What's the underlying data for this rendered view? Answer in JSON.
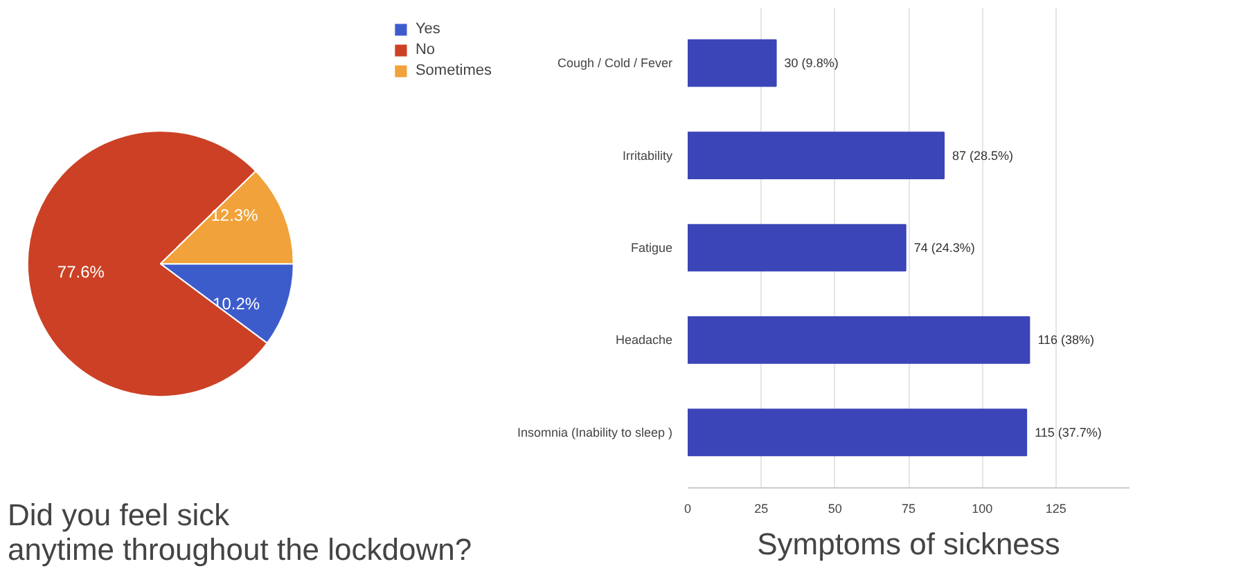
{
  "chart_data": [
    {
      "type": "pie",
      "title": "Did you feel sick\nanytime throughout the lockdown?",
      "categories": [
        "Yes",
        "No",
        "Sometimes"
      ],
      "values": [
        10.2,
        77.6,
        12.3
      ],
      "colors": [
        "#3d5ccc",
        "#cc4125",
        "#f1a23a"
      ],
      "value_labels": [
        "10.2%",
        "77.6%",
        "12.3%"
      ],
      "legend": "top right"
    },
    {
      "type": "bar",
      "orientation": "horizontal",
      "title": "Symptoms of sickness",
      "categories": [
        "Cough / Cold / Fever",
        "Irritability",
        "Fatigue",
        "Headache",
        "Insomnia (Inability to sleep )"
      ],
      "values": [
        30,
        87,
        74,
        116,
        115
      ],
      "color": "#3c45b8",
      "value_labels": [
        "30 (9.8%)",
        "87 (28.5%)",
        "74 (24.3%)",
        "116 (38%)",
        "115 (37.7%)"
      ],
      "xlim": [
        0,
        150
      ],
      "xticks": [
        0,
        25,
        50,
        75,
        100,
        125
      ],
      "grid": "x"
    }
  ]
}
